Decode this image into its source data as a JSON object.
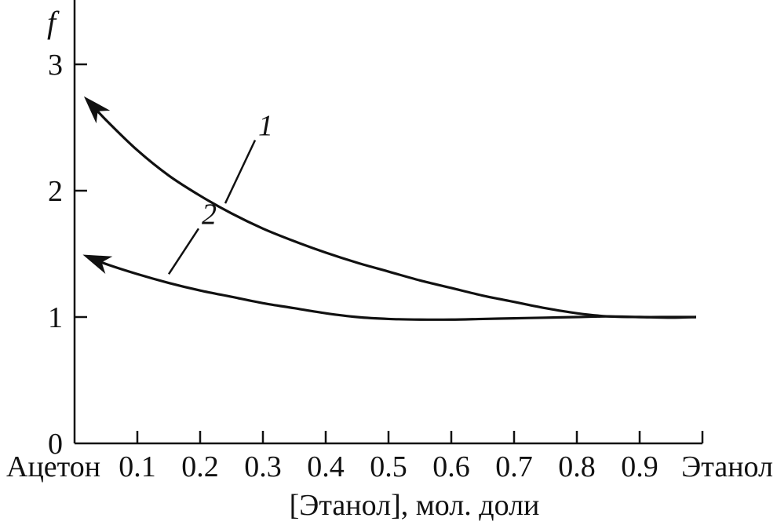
{
  "chart_data": {
    "type": "line",
    "xlabel": "[Этанол], мол. доли",
    "ylabel": "f",
    "xlim": [
      0,
      1
    ],
    "ylim": [
      0,
      3.5
    ],
    "grid": false,
    "x_ticks": [
      {
        "value": 0,
        "label": "Ацетон"
      },
      {
        "value": 0.1,
        "label": "0.1"
      },
      {
        "value": 0.2,
        "label": "0.2"
      },
      {
        "value": 0.3,
        "label": "0.3"
      },
      {
        "value": 0.4,
        "label": "0.4"
      },
      {
        "value": 0.5,
        "label": "0.5"
      },
      {
        "value": 0.6,
        "label": "0.6"
      },
      {
        "value": 0.7,
        "label": "0.7"
      },
      {
        "value": 0.8,
        "label": "0.8"
      },
      {
        "value": 0.9,
        "label": "0.9"
      },
      {
        "value": 1.0,
        "label": "Этанол"
      }
    ],
    "y_ticks": [
      {
        "value": 0,
        "label": "0"
      },
      {
        "value": 1,
        "label": "1"
      },
      {
        "value": 2,
        "label": "2"
      },
      {
        "value": 3,
        "label": "3"
      }
    ],
    "series": [
      {
        "name": "1",
        "x": [
          0.02,
          0.05,
          0.1,
          0.15,
          0.2,
          0.25,
          0.3,
          0.35,
          0.4,
          0.45,
          0.5,
          0.55,
          0.6,
          0.65,
          0.7,
          0.75,
          0.8,
          0.85,
          0.9,
          0.95,
          0.99
        ],
        "y": [
          2.72,
          2.56,
          2.32,
          2.12,
          1.96,
          1.82,
          1.7,
          1.6,
          1.51,
          1.43,
          1.36,
          1.29,
          1.23,
          1.17,
          1.12,
          1.07,
          1.03,
          1.005,
          1.0,
          1.0,
          1.0
        ],
        "arrow_at_start": true,
        "label_anchor": {
          "x": 0.24,
          "y": 1.9
        },
        "label_pos": {
          "x": 0.29,
          "y": 2.4
        }
      },
      {
        "name": "2",
        "x": [
          0.02,
          0.05,
          0.1,
          0.15,
          0.2,
          0.25,
          0.3,
          0.35,
          0.4,
          0.45,
          0.5,
          0.55,
          0.6,
          0.65,
          0.7,
          0.75,
          0.8,
          0.85,
          0.9,
          0.95,
          0.99
        ],
        "y": [
          1.48,
          1.42,
          1.34,
          1.27,
          1.21,
          1.16,
          1.11,
          1.07,
          1.03,
          1.0,
          0.985,
          0.98,
          0.98,
          0.985,
          0.99,
          0.995,
          1.0,
          1.005,
          1.0,
          0.995,
          1.0
        ],
        "arrow_at_start": true,
        "label_anchor": {
          "x": 0.15,
          "y": 1.34
        },
        "label_pos": {
          "x": 0.2,
          "y": 1.7
        }
      }
    ]
  }
}
